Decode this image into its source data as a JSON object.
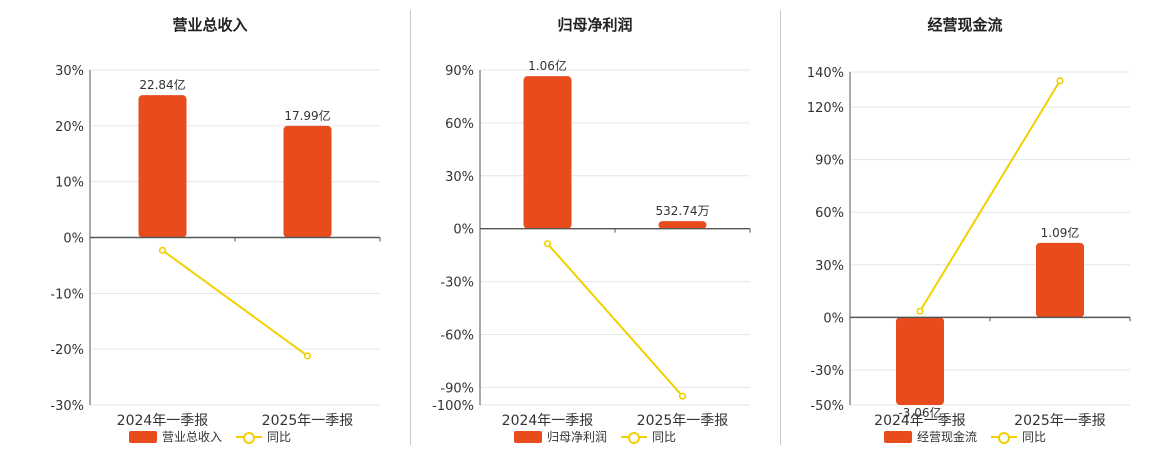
{
  "colors": {
    "bar": "#E84C1C",
    "line": "#F2D000",
    "axis": "#555555",
    "grid": "#e6e6e6"
  },
  "chart_data": [
    {
      "type": "bar",
      "title": "营业总收入",
      "categories": [
        "2024年一季报",
        "2025年一季报"
      ],
      "series": [
        {
          "name": "营业总收入",
          "type": "bar",
          "values": [
            25.5,
            20.0
          ],
          "labels": [
            "22.84亿",
            "17.99亿"
          ]
        },
        {
          "name": "同比",
          "type": "line",
          "values": [
            -2.3,
            -21.2
          ]
        }
      ],
      "y_ticks": [
        "30%",
        "20%",
        "10%",
        "0%",
        "-10%",
        "-20%",
        "-30%"
      ],
      "ylim": [
        -30,
        30
      ],
      "legend": "bottom"
    },
    {
      "type": "bar",
      "title": "归母净利润",
      "categories": [
        "2024年一季报",
        "2025年一季报"
      ],
      "series": [
        {
          "name": "归母净利润",
          "type": "bar",
          "values": [
            86.5,
            4.3
          ],
          "labels": [
            "1.06亿",
            "532.74万"
          ]
        },
        {
          "name": "同比",
          "type": "line",
          "values": [
            -8.5,
            -95.0
          ]
        }
      ],
      "y_ticks": [
        "90%",
        "60%",
        "30%",
        "0%",
        "-30%",
        "-60%",
        "-90%",
        "-100%"
      ],
      "ylim": [
        -100,
        90
      ],
      "legend": "bottom"
    },
    {
      "type": "bar",
      "title": "经营现金流",
      "categories": [
        "2024年一季报",
        "2025年一季报"
      ],
      "series": [
        {
          "name": "经营现金流",
          "type": "bar",
          "values": [
            -50,
            42.5
          ],
          "labels": [
            "-3.06亿",
            "1.09亿"
          ]
        },
        {
          "name": "同比",
          "type": "line",
          "values": [
            3.5,
            135.0
          ]
        }
      ],
      "y_ticks": [
        "140%",
        "120%",
        "90%",
        "60%",
        "30%",
        "0%",
        "-30%",
        "-50%"
      ],
      "ylim": [
        -50,
        140
      ],
      "legend": "bottom"
    }
  ]
}
